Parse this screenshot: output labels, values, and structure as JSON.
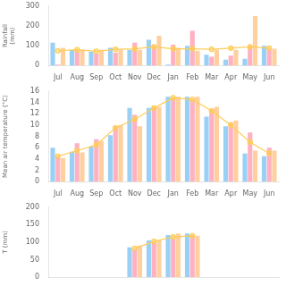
{
  "chart_data": [
    {
      "type": "bar",
      "ylabel": "Rainfall\n(mm)",
      "categories": [
        "Jul",
        "Aug",
        "Sep",
        "Oct",
        "Nov",
        "Dec",
        "Jan",
        "Feb",
        "Mar",
        "Apr",
        "May",
        "Jun"
      ],
      "series": [
        {
          "values": [
            115,
            80,
            70,
            90,
            80,
            130,
            5,
            100,
            55,
            30,
            35,
            100
          ]
        },
        {
          "values": [
            5,
            75,
            60,
            65,
            115,
            100,
            105,
            175,
            45,
            50,
            100,
            85
          ]
        },
        {
          "values": [
            90,
            80,
            80,
            82,
            80,
            150,
            90,
            75,
            80,
            80,
            250,
            85
          ]
        },
        {
          "type": "line",
          "marker": "circle",
          "values": [
            75,
            80,
            72,
            82,
            85,
            95,
            85,
            85,
            82,
            88,
            95,
            88
          ]
        }
      ],
      "ylim": [
        0,
        300
      ],
      "yticks": [
        0,
        100,
        200,
        300
      ],
      "grid": false
    },
    {
      "type": "bar",
      "ylabel": "Mean air temperature (°C)",
      "categories": [
        "Jul",
        "Aug",
        "Sep",
        "Oct",
        "Nov",
        "Dec",
        "Jan",
        "Feb",
        "Mar",
        "Apr",
        "May",
        "Jun"
      ],
      "series": [
        {
          "values": [
            6.0,
            5.3,
            6.2,
            8.2,
            13.0,
            13.0,
            15.0,
            15.0,
            11.5,
            9.8,
            5.0,
            4.5
          ]
        },
        {
          "values": [
            4.5,
            6.8,
            7.5,
            9.8,
            11.8,
            13.2,
            14.8,
            14.5,
            12.8,
            10.5,
            8.7,
            6.0
          ]
        },
        {
          "values": [
            4.2,
            5.2,
            7.2,
            10.0,
            9.8,
            13.2,
            15.0,
            15.0,
            13.2,
            10.8,
            5.5,
            5.5
          ]
        },
        {
          "type": "line",
          "marker": "circle",
          "values": [
            4.5,
            5.5,
            6.5,
            9.5,
            11.0,
            13.0,
            14.8,
            14.5,
            12.5,
            10.0,
            7.0,
            5.0
          ]
        }
      ],
      "ylim": [
        0,
        16
      ],
      "yticks": [
        0,
        2,
        4,
        6,
        8,
        10,
        12,
        14,
        16
      ],
      "grid": false
    },
    {
      "type": "bar",
      "ylabel": "T (mm)",
      "categories": [
        "Jul",
        "Aug",
        "Sep",
        "Oct",
        "Nov",
        "Dec",
        "Jan",
        "Feb",
        "Mar",
        "Apr",
        "May",
        "Jun"
      ],
      "series": [
        {
          "values": [
            0,
            0,
            0,
            0,
            85,
            105,
            120,
            125,
            0,
            0,
            0,
            0
          ]
        },
        {
          "values": [
            0,
            0,
            0,
            0,
            80,
            100,
            112,
            120,
            0,
            0,
            0,
            0
          ]
        },
        {
          "values": [
            0,
            0,
            0,
            0,
            90,
            105,
            125,
            118,
            0,
            0,
            0,
            0
          ]
        },
        {
          "type": "line",
          "marker": "circle",
          "values": [
            null,
            null,
            null,
            null,
            82,
            102,
            115,
            118,
            null,
            null,
            null,
            null
          ]
        }
      ],
      "ylim": [
        0,
        200
      ],
      "yticks": [
        0,
        50,
        100,
        150,
        200
      ],
      "grid": false,
      "tick_labels": "y"
    }
  ]
}
